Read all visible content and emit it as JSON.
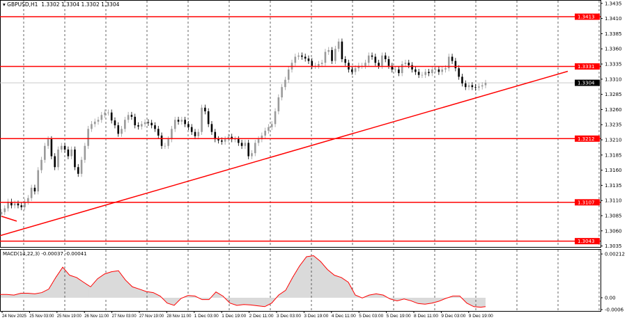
{
  "header": {
    "symbol": "GBPUSD,H1",
    "ohlc": "1.3302 1.3304 1.3302 1.3304",
    "arrow_icon": "triangle-down-icon"
  },
  "macd_header": {
    "label": "MACD(14,22,3) -0.00037 -0.00041"
  },
  "colors": {
    "level": "#ff0000",
    "bull": "#9a9a9a",
    "bear": "#000000",
    "macd_hist": "#c0c0c0",
    "signal": "#ff0000",
    "current_price_bg": "#000000"
  },
  "chart_data": [
    {
      "type": "candlestick",
      "title": "GBPUSD,H1",
      "ylim": [
        1.303,
        1.344
      ],
      "yticks": [
        "1.3435",
        "1.3410",
        "1.3385",
        "1.3360",
        "1.3335",
        "1.3310",
        "1.3285",
        "1.3260",
        "1.3235",
        "1.3210",
        "1.3185",
        "1.3160",
        "1.3135",
        "1.3110",
        "1.3085",
        "1.3060",
        "1.3035"
      ],
      "xticks": [
        "24 Nov 2025",
        "25 Nov 03:00",
        "25 Nov 19:00",
        "26 Nov 11:00",
        "27 Nov 03:00",
        "27 Nov 19:00",
        "28 Nov 11:00",
        "1 Dec 03:00",
        "1 Dec 19:00",
        "2 Dec 11:00",
        "3 Dec 03:00",
        "3 Dec 19:00",
        "4 Dec 11:00",
        "5 Dec 03:00",
        "5 Dec 19:00",
        "8 Dec 11:00",
        "9 Dec 03:00",
        "9 Dec 19:00"
      ],
      "grid": true,
      "levels": [
        {
          "value": 1.3413,
          "label": "1.3413"
        },
        {
          "value": 1.3331,
          "label": "1.3331"
        },
        {
          "value": 1.3212,
          "label": "1.3212"
        },
        {
          "value": 1.3107,
          "label": "1.3107"
        },
        {
          "value": 1.3043,
          "label": "1.3043"
        }
      ],
      "current_price": {
        "value": 1.3304,
        "label": "1.3304"
      },
      "trendlines": [
        {
          "from": 1.3052,
          "to": 1.3323,
          "from_time": "24 Nov 2025",
          "to_time": "after 9 Dec 19:00"
        },
        {
          "from": 1.3084,
          "to": 1.3076,
          "from_time": "24 Nov 2025",
          "to_time": "24 Nov 2025"
        }
      ],
      "closes": [
        1.3091,
        1.3097,
        1.3108,
        1.3102,
        1.3105,
        1.3102,
        1.3099,
        1.3108,
        1.3114,
        1.3131,
        1.3125,
        1.316,
        1.3177,
        1.32,
        1.3211,
        1.3183,
        1.3165,
        1.3194,
        1.32,
        1.3194,
        1.3183,
        1.3194,
        1.3165,
        1.3154,
        1.3177,
        1.32,
        1.3228,
        1.3236,
        1.324,
        1.3243,
        1.3251,
        1.3255,
        1.3255,
        1.3242,
        1.3234,
        1.322,
        1.3228,
        1.3243,
        1.3251,
        1.3248,
        1.3234,
        1.3232,
        1.3236,
        1.3239,
        1.3238,
        1.3234,
        1.3228,
        1.3217,
        1.32,
        1.32,
        1.3211,
        1.3228,
        1.3243,
        1.324,
        1.3243,
        1.3236,
        1.3231,
        1.3223,
        1.3216,
        1.3223,
        1.3263,
        1.3257,
        1.3236,
        1.3223,
        1.3211,
        1.3209,
        1.3207,
        1.3211,
        1.3215,
        1.3211,
        1.3211,
        1.3205,
        1.32,
        1.3205,
        1.3183,
        1.3188,
        1.3205,
        1.3211,
        1.3217,
        1.3225,
        1.3231,
        1.3236,
        1.3257,
        1.328,
        1.3297,
        1.3309,
        1.3326,
        1.3337,
        1.3347,
        1.3349,
        1.3347,
        1.3344,
        1.334,
        1.3332,
        1.3332,
        1.3335,
        1.3337,
        1.3355,
        1.3358,
        1.334,
        1.336,
        1.3372,
        1.3343,
        1.3337,
        1.3326,
        1.3322,
        1.3328,
        1.3332,
        1.3332,
        1.3337,
        1.3349,
        1.3347,
        1.3337,
        1.3332,
        1.3349,
        1.3343,
        1.3332,
        1.3326,
        1.3326,
        1.332,
        1.3335,
        1.3337,
        1.3333,
        1.3326,
        1.3322,
        1.3317,
        1.3317,
        1.3322,
        1.332,
        1.3326,
        1.3326,
        1.3322,
        1.3326,
        1.3328,
        1.3347,
        1.334,
        1.3328,
        1.3314,
        1.3303,
        1.3297,
        1.33,
        1.3297,
        1.3296,
        1.3298,
        1.33,
        1.3304
      ]
    },
    {
      "type": "bar",
      "title": "MACD(14,22,3)",
      "ylim": [
        -0.0006,
        0.00212
      ],
      "yticks": [
        "0.00212",
        "0.00",
        "-0.0006"
      ],
      "main": -0.00037,
      "signal": -0.00041,
      "values": [
        0.00016,
        0.00016,
        0.00013,
        0.00022,
        0.00022,
        0.00019,
        0.00025,
        0.00042,
        0.00098,
        0.00148,
        0.00109,
        0.00098,
        0.00075,
        0.00053,
        0.00092,
        0.00115,
        0.00126,
        0.00131,
        0.00086,
        0.00053,
        0.00042,
        0.0003,
        0.00025,
        8e-05,
        -0.00026,
        -0.00037,
        -3e-05,
        0.00011,
        8e-05,
        -9e-05,
        -9e-05,
        0.00028,
        8e-05,
        -0.00026,
        -0.00037,
        -0.00033,
        -0.00035,
        -0.00039,
        -0.00043,
        -0.00026,
        0.00013,
        0.00036,
        0.00098,
        0.00154,
        0.00199,
        0.00204,
        0.00176,
        0.00137,
        0.00109,
        0.00098,
        0.00075,
        0.00013,
        -1e-05,
        0.00013,
        0.00019,
        0.00013,
        -6e-05,
        -0.00015,
        -6e-05,
        -0.00015,
        -0.00028,
        -0.00031,
        -0.00026,
        -0.00017,
        -3e-05,
        8e-05,
        8e-05,
        -0.00026,
        -0.00043,
        -0.00046,
        -0.00043
      ]
    }
  ]
}
